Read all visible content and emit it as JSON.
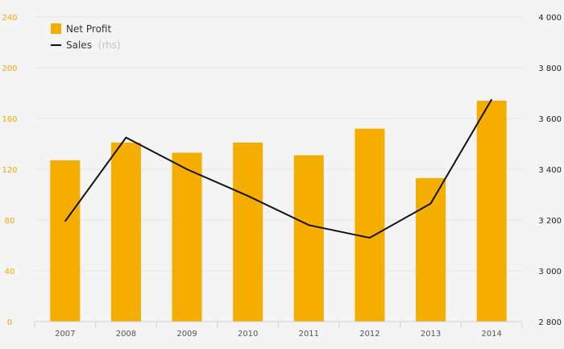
{
  "chart_data": {
    "type": "bar",
    "categories": [
      "2007",
      "2008",
      "2009",
      "2010",
      "2011",
      "2012",
      "2013",
      "2014"
    ],
    "series": [
      {
        "name": "Net Profit",
        "kind": "bar",
        "axis": "left",
        "color": "#f5ae00",
        "values": [
          127,
          141,
          133,
          141,
          131,
          152,
          113,
          174
        ]
      },
      {
        "name": "Sales",
        "kind": "line",
        "axis": "right",
        "color": "#111111",
        "values": [
          3195,
          3525,
          3400,
          3295,
          3180,
          3130,
          3265,
          3675
        ]
      }
    ],
    "y_left": {
      "min": 0,
      "max": 240,
      "ticks": [
        "0",
        "40",
        "80",
        "120",
        "160",
        "200",
        "240"
      ],
      "color": "#f5a800"
    },
    "y_right": {
      "min": 2800,
      "max": 4000,
      "ticks": [
        "2 800",
        "3 000",
        "3 200",
        "3 400",
        "3 600",
        "3 800",
        "4 000"
      ],
      "color": "#222222"
    },
    "legend": {
      "placement": "top-left",
      "items": [
        {
          "label": "Net Profit",
          "note": ""
        },
        {
          "label": "Sales",
          "note": "(rhs)"
        }
      ]
    },
    "grid": true,
    "title": "",
    "xlabel": "",
    "ylabel": ""
  }
}
